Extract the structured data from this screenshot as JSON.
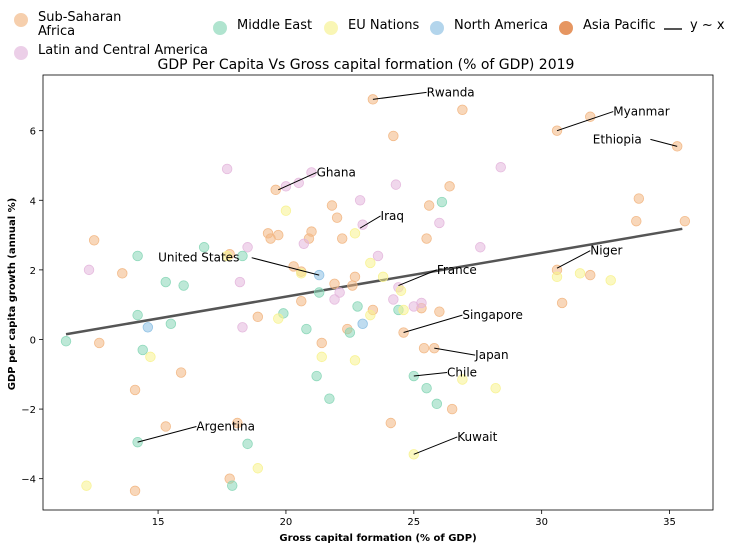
{
  "chart_data": {
    "type": "scatter",
    "title": "GDP Per Capita Vs Gross capital formation (% of GDP) 2019",
    "xlabel": "Gross capital formation (% of GDP)",
    "ylabel": "GDP per capita growth (annual %)",
    "xlim": [
      10.5,
      36.7
    ],
    "ylim": [
      -4.9,
      7.6
    ],
    "xticks": [
      "15",
      "20",
      "25",
      "30",
      "35"
    ],
    "yticks": [
      "−4",
      "−2",
      "0",
      "2",
      "4",
      "6"
    ],
    "grid": false,
    "legend_position": "top",
    "legend": [
      {
        "label": "Sub-Saharan\nAfrica",
        "color": "#f2b682",
        "kind": "marker"
      },
      {
        "label": "Latin and Central America",
        "color": "#e3b6dc",
        "kind": "marker"
      },
      {
        "label": "Middle East",
        "color": "#86d6b6",
        "kind": "marker"
      },
      {
        "label": "EU Nations",
        "color": "#f7f28e",
        "kind": "marker"
      },
      {
        "label": "North America",
        "color": "#8bbfe3",
        "kind": "marker"
      },
      {
        "label": "Asia Pacific",
        "color": "#d95f0e",
        "kind": "marker"
      },
      {
        "label": "y ~ x",
        "color": "#555555",
        "kind": "line"
      }
    ],
    "trendline": {
      "x": [
        11.4,
        35.5
      ],
      "y": [
        0.15,
        3.18
      ],
      "color": "#555555"
    },
    "series": [
      {
        "name": "Sub-Saharan\nAfrica",
        "color": "#f2b682",
        "points": [
          [
            12.5,
            2.85
          ],
          [
            12.7,
            -0.1
          ],
          [
            13.6,
            1.9
          ],
          [
            14.1,
            -1.45
          ],
          [
            14.1,
            -4.35
          ],
          [
            15.3,
            -2.5
          ],
          [
            15.9,
            -0.95
          ],
          [
            17.8,
            -4.0
          ],
          [
            17.8,
            2.45
          ],
          [
            18.1,
            -2.4
          ],
          [
            18.9,
            0.65
          ],
          [
            19.3,
            3.05
          ],
          [
            19.4,
            2.9
          ],
          [
            19.6,
            4.3
          ],
          [
            19.7,
            3.0
          ],
          [
            20.3,
            2.1
          ],
          [
            20.6,
            1.1
          ],
          [
            20.6,
            1.95
          ],
          [
            20.9,
            2.9
          ],
          [
            21.0,
            3.1
          ],
          [
            21.4,
            -0.1
          ],
          [
            21.8,
            3.85
          ],
          [
            21.9,
            1.6
          ],
          [
            22.0,
            3.5
          ],
          [
            22.2,
            2.9
          ],
          [
            22.4,
            0.3
          ],
          [
            22.6,
            1.55
          ],
          [
            22.7,
            1.8
          ],
          [
            23.4,
            6.9
          ],
          [
            23.4,
            0.85
          ],
          [
            24.1,
            -2.4
          ],
          [
            24.2,
            5.85
          ],
          [
            24.6,
            0.2
          ],
          [
            25.3,
            0.9
          ],
          [
            25.4,
            -0.25
          ],
          [
            25.5,
            2.9
          ],
          [
            25.6,
            3.85
          ],
          [
            25.8,
            -0.25
          ],
          [
            26.0,
            0.8
          ],
          [
            26.4,
            4.4
          ],
          [
            26.5,
            -2.0
          ],
          [
            26.9,
            6.6
          ],
          [
            30.6,
            6.0
          ],
          [
            30.6,
            2.0
          ],
          [
            30.8,
            1.05
          ],
          [
            31.9,
            6.4
          ],
          [
            31.9,
            1.85
          ],
          [
            33.7,
            3.4
          ],
          [
            33.8,
            4.05
          ],
          [
            35.3,
            5.55
          ],
          [
            35.6,
            3.4
          ]
        ]
      },
      {
        "name": "Latin and Central America",
        "color": "#e3b6dc",
        "points": [
          [
            12.3,
            2.0
          ],
          [
            17.7,
            4.9
          ],
          [
            18.2,
            1.65
          ],
          [
            18.3,
            0.35
          ],
          [
            18.5,
            2.65
          ],
          [
            20.0,
            4.4
          ],
          [
            20.5,
            4.5
          ],
          [
            20.7,
            2.75
          ],
          [
            21.0,
            4.8
          ],
          [
            21.9,
            1.15
          ],
          [
            22.1,
            1.35
          ],
          [
            22.9,
            4.0
          ],
          [
            23.0,
            3.3
          ],
          [
            23.6,
            2.4
          ],
          [
            24.2,
            1.15
          ],
          [
            24.3,
            4.45
          ],
          [
            24.4,
            1.5
          ],
          [
            25.0,
            0.95
          ],
          [
            25.3,
            1.05
          ],
          [
            26.0,
            3.35
          ],
          [
            27.6,
            2.65
          ],
          [
            28.4,
            4.95
          ]
        ]
      },
      {
        "name": "Middle East",
        "color": "#86d6b6",
        "points": [
          [
            11.4,
            -0.05
          ],
          [
            14.2,
            2.4
          ],
          [
            14.2,
            0.7
          ],
          [
            14.4,
            -0.3
          ],
          [
            15.3,
            1.65
          ],
          [
            15.5,
            0.45
          ],
          [
            16.0,
            1.55
          ],
          [
            16.8,
            2.65
          ],
          [
            17.9,
            -4.2
          ],
          [
            18.3,
            2.4
          ],
          [
            18.5,
            -3.0
          ],
          [
            19.9,
            0.75
          ],
          [
            20.8,
            0.3
          ],
          [
            21.2,
            -1.05
          ],
          [
            21.3,
            1.35
          ],
          [
            21.7,
            -1.7
          ],
          [
            22.5,
            0.2
          ],
          [
            22.8,
            0.95
          ],
          [
            24.4,
            0.85
          ],
          [
            25.0,
            -1.05
          ],
          [
            25.5,
            -1.4
          ],
          [
            25.9,
            -1.85
          ],
          [
            26.1,
            3.95
          ],
          [
            14.2,
            -2.95
          ]
        ]
      },
      {
        "name": "EU Nations",
        "color": "#f7f28e",
        "points": [
          [
            12.2,
            -4.2
          ],
          [
            14.7,
            -0.5
          ],
          [
            17.7,
            2.4
          ],
          [
            19.7,
            0.6
          ],
          [
            20.0,
            3.7
          ],
          [
            20.6,
            1.9
          ],
          [
            21.4,
            -0.5
          ],
          [
            22.7,
            3.05
          ],
          [
            22.7,
            -0.6
          ],
          [
            23.3,
            0.7
          ],
          [
            23.3,
            2.2
          ],
          [
            23.8,
            1.8
          ],
          [
            24.5,
            1.4
          ],
          [
            24.6,
            0.85
          ],
          [
            25.0,
            -3.3
          ],
          [
            26.9,
            -1.15
          ],
          [
            28.2,
            -1.4
          ],
          [
            30.6,
            1.8
          ],
          [
            31.5,
            1.9
          ],
          [
            32.7,
            1.7
          ],
          [
            18.9,
            -3.7
          ]
        ]
      },
      {
        "name": "North America",
        "color": "#8bbfe3",
        "points": [
          [
            14.6,
            0.35
          ],
          [
            21.3,
            1.85
          ],
          [
            23.0,
            0.45
          ]
        ]
      }
    ],
    "annotations": [
      {
        "text": "Rwanda",
        "x": 23.4,
        "y": 6.9,
        "tx": 25.5,
        "ty": 7.1
      },
      {
        "text": "Myanmar",
        "x": 30.6,
        "y": 6.0,
        "tx": 32.8,
        "ty": 6.55
      },
      {
        "text": "Ethiopia",
        "x": 35.3,
        "y": 5.55,
        "tx": 32.0,
        "ty": 5.75
      },
      {
        "text": "Ghana",
        "x": 19.7,
        "y": 4.3,
        "tx": 21.2,
        "ty": 4.8
      },
      {
        "text": "Iraq",
        "x": 22.9,
        "y": 3.2,
        "tx": 23.7,
        "ty": 3.55
      },
      {
        "text": "United States",
        "x": 21.3,
        "y": 1.85,
        "tx": 15.0,
        "ty": 2.35
      },
      {
        "text": "Niger",
        "x": 30.6,
        "y": 2.05,
        "tx": 31.9,
        "ty": 2.55
      },
      {
        "text": "France",
        "x": 24.4,
        "y": 1.55,
        "tx": 25.9,
        "ty": 2.0
      },
      {
        "text": "Singapore",
        "x": 24.6,
        "y": 0.2,
        "tx": 26.9,
        "ty": 0.7
      },
      {
        "text": "Japan",
        "x": 25.8,
        "y": -0.25,
        "tx": 27.4,
        "ty": -0.45
      },
      {
        "text": "Chile",
        "x": 25.0,
        "y": -1.05,
        "tx": 26.3,
        "ty": -0.95
      },
      {
        "text": "Argentina",
        "x": 14.2,
        "y": -2.95,
        "tx": 16.5,
        "ty": -2.5
      },
      {
        "text": "Kuwait",
        "x": 25.0,
        "y": -3.3,
        "tx": 26.7,
        "ty": -2.8
      }
    ]
  }
}
